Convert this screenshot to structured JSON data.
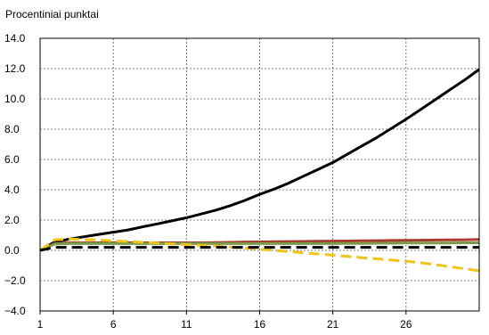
{
  "chart_data": {
    "type": "line",
    "ylabel": "Procentiniai punktai",
    "xlim": [
      1,
      31
    ],
    "ylim": [
      -4.0,
      14.0
    ],
    "x_ticks": [
      1,
      6,
      11,
      16,
      21,
      26
    ],
    "x_tick_labels": [
      "1",
      "6",
      "11",
      "16",
      "21",
      "26"
    ],
    "y_ticks": [
      -4.0,
      -2.0,
      0.0,
      2.0,
      4.0,
      6.0,
      8.0,
      10.0,
      12.0,
      14.0
    ],
    "y_tick_labels": [
      "−4.0",
      "−2.0",
      "0.0",
      "2.0",
      "4.0",
      "6.0",
      "8.0",
      "10.0",
      "12.0",
      "14.0"
    ],
    "grid": true,
    "x": [
      1,
      2,
      3,
      4,
      5,
      6,
      7,
      8,
      9,
      10,
      11,
      12,
      13,
      14,
      15,
      16,
      17,
      18,
      19,
      20,
      21,
      22,
      23,
      24,
      25,
      26,
      27,
      28,
      29,
      30,
      31
    ],
    "series": [
      {
        "color": "#000000",
        "dash": "solid",
        "width": 3,
        "values": [
          0.0,
          0.55,
          0.75,
          0.9,
          1.05,
          1.2,
          1.35,
          1.55,
          1.75,
          1.95,
          2.15,
          2.4,
          2.65,
          2.95,
          3.3,
          3.7,
          4.05,
          4.45,
          4.9,
          5.35,
          5.8,
          6.35,
          6.9,
          7.45,
          8.05,
          8.65,
          9.3,
          9.95,
          10.6,
          11.25,
          11.95
        ]
      },
      {
        "color": "#a83b2d",
        "dash": "solid",
        "width": 3,
        "values": [
          0.0,
          0.45,
          0.5,
          0.5,
          0.5,
          0.5,
          0.5,
          0.5,
          0.5,
          0.5,
          0.5,
          0.5,
          0.52,
          0.53,
          0.55,
          0.56,
          0.57,
          0.58,
          0.59,
          0.6,
          0.61,
          0.62,
          0.63,
          0.64,
          0.65,
          0.66,
          0.67,
          0.68,
          0.69,
          0.7,
          0.72
        ]
      },
      {
        "color": "#7a9a4c",
        "dash": "solid",
        "width": 3,
        "values": [
          0.0,
          0.42,
          0.45,
          0.45,
          0.45,
          0.45,
          0.45,
          0.45,
          0.45,
          0.45,
          0.45,
          0.45,
          0.45,
          0.45,
          0.45,
          0.45,
          0.45,
          0.45,
          0.45,
          0.45,
          0.45,
          0.46,
          0.46,
          0.47,
          0.47,
          0.48,
          0.48,
          0.49,
          0.49,
          0.5,
          0.5
        ]
      },
      {
        "color": "#f0c419",
        "dash": "dash",
        "width": 3,
        "values": [
          0.0,
          0.7,
          0.75,
          0.72,
          0.68,
          0.63,
          0.58,
          0.53,
          0.48,
          0.43,
          0.38,
          0.33,
          0.28,
          0.22,
          0.15,
          0.08,
          0.0,
          -0.08,
          -0.16,
          -0.24,
          -0.32,
          -0.4,
          -0.48,
          -0.56,
          -0.64,
          -0.72,
          -0.82,
          -0.95,
          -1.08,
          -1.22,
          -1.35
        ]
      },
      {
        "color": "#000000",
        "dash": "dash",
        "width": 3,
        "values": [
          0.0,
          0.2,
          0.2,
          0.2,
          0.2,
          0.2,
          0.2,
          0.2,
          0.2,
          0.2,
          0.2,
          0.2,
          0.2,
          0.2,
          0.2,
          0.2,
          0.2,
          0.2,
          0.2,
          0.2,
          0.2,
          0.2,
          0.2,
          0.2,
          0.2,
          0.2,
          0.2,
          0.2,
          0.2,
          0.2,
          0.2
        ]
      }
    ]
  }
}
